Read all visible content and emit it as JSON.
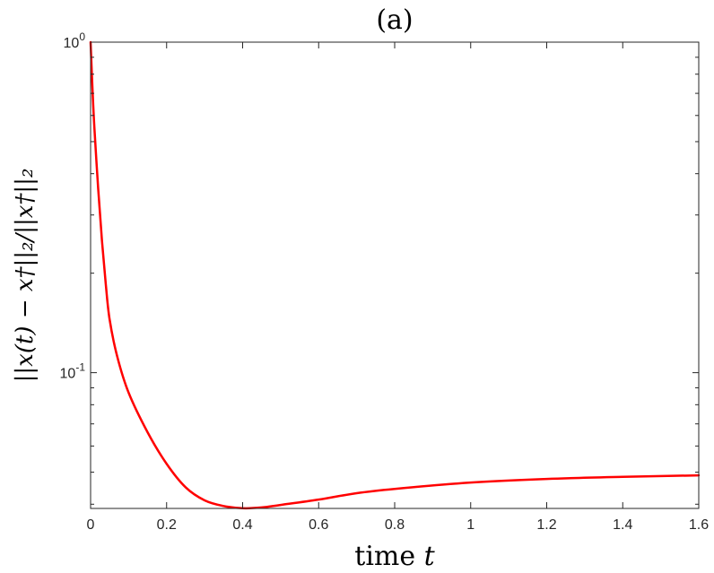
{
  "chart_data": {
    "type": "line",
    "title": "(a)",
    "xlabel_text": "time ",
    "xlabel_var": "t",
    "ylabel": "||x(t) − x†||₂/||x†||₂",
    "xlim": [
      0,
      1.6
    ],
    "ylim": [
      0.03884,
      1
    ],
    "yscale": "log",
    "grid": false,
    "x_ticks": [
      0,
      0.2,
      0.4,
      0.6,
      0.8,
      1,
      1.2,
      1.4,
      1.6
    ],
    "x_tick_labels": [
      "0",
      "0.2",
      "0.4",
      "0.6",
      "0.8",
      "1",
      "1.2",
      "1.4",
      "1.6"
    ],
    "y_ticks": [
      1,
      0.1
    ],
    "y_tick_labels": [
      {
        "base": "10",
        "exp": "0"
      },
      {
        "base": "10",
        "exp": "-1"
      }
    ],
    "series": [
      {
        "color": "#ff0000",
        "x": [
          0,
          0.005,
          0.01,
          0.02,
          0.03,
          0.04,
          0.05,
          0.07,
          0.1,
          0.15,
          0.2,
          0.25,
          0.3,
          0.35,
          0.4,
          0.45,
          0.5,
          0.6,
          0.7,
          0.8,
          1.0,
          1.2,
          1.4,
          1.6
        ],
        "y": [
          1.0,
          0.72,
          0.55,
          0.36,
          0.25,
          0.185,
          0.145,
          0.112,
          0.087,
          0.066,
          0.053,
          0.045,
          0.0411,
          0.0395,
          0.0389,
          0.0391,
          0.0398,
          0.0413,
          0.0432,
          0.0445,
          0.0465,
          0.0477,
          0.0484,
          0.0489
        ]
      }
    ]
  }
}
